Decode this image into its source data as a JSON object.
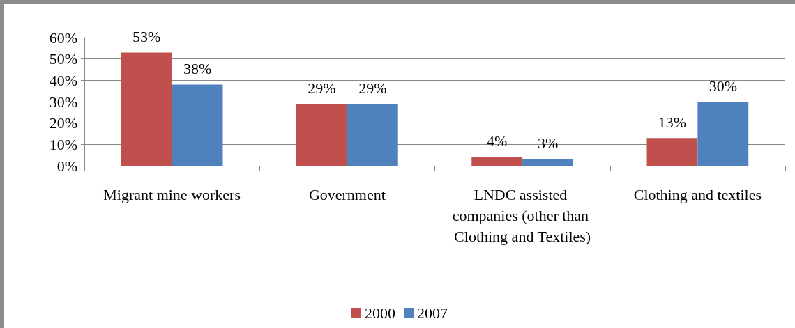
{
  "chart_data": {
    "type": "bar",
    "categories": [
      "Migrant mine workers",
      "Government",
      "LNDC assisted companies (other than Clothing and Textiles)",
      "Clothing and textiles"
    ],
    "series": [
      {
        "name": "2000",
        "color": "#c0504d",
        "values": [
          53,
          29,
          4,
          13
        ],
        "value_labels": [
          "53%",
          "29%",
          "4%",
          "13%"
        ]
      },
      {
        "name": "2007",
        "color": "#4f81bd",
        "values": [
          38,
          29,
          3,
          30
        ],
        "value_labels": [
          "38%",
          "29%",
          "3%",
          "30%"
        ]
      }
    ],
    "ylim": [
      0,
      60
    ],
    "yticks": [
      {
        "value": 0,
        "label": "0%"
      },
      {
        "value": 10,
        "label": "10%"
      },
      {
        "value": 20,
        "label": "20%"
      },
      {
        "value": 30,
        "label": "30%"
      },
      {
        "value": 40,
        "label": "40%"
      },
      {
        "value": 50,
        "label": "50%"
      },
      {
        "value": 60,
        "label": "60%"
      }
    ],
    "grid": "y",
    "legend": "bottom"
  }
}
